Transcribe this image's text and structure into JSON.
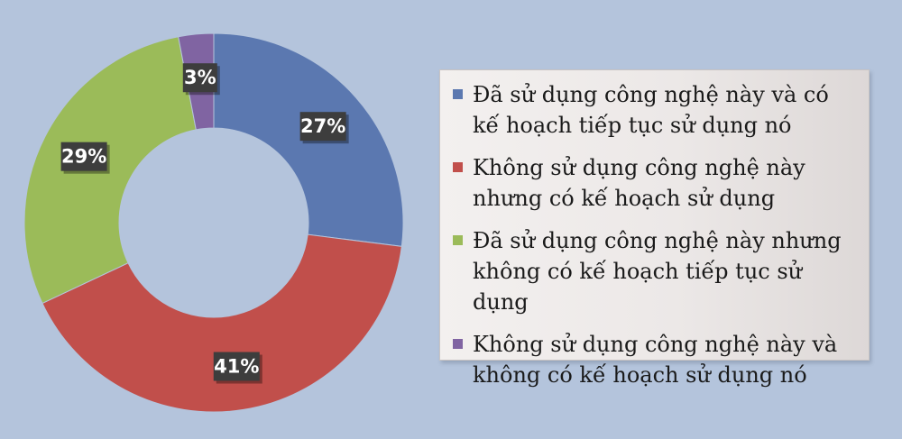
{
  "chart_data": {
    "type": "pie",
    "donut": true,
    "categories": [
      "Đã sử dụng công nghệ này và có kế hoạch tiếp tục sử dụng nó",
      "Không sử dụng công nghệ này nhưng có kế hoạch sử dụng",
      "Đã sử dụng công nghệ này nhưng không có kế hoạch tiếp tục sử dụng",
      "Không sử dụng công nghệ này và không có kế hoạch sử dụng nó"
    ],
    "values": [
      27,
      41,
      29,
      3
    ],
    "data_labels": [
      "27%",
      "41%",
      "29%",
      "3%"
    ],
    "colors": [
      "#5b78b0",
      "#c14f4b",
      "#9bbb59",
      "#8064a2"
    ],
    "legend_position": "right",
    "title": ""
  },
  "legend": {
    "items": [
      {
        "label": "Đã sử dụng công nghệ này và có kế hoạch tiếp tục sử dụng nó",
        "color": "#5b78b0"
      },
      {
        "label": "Không sử dụng công nghệ này nhưng có kế hoạch sử dụng",
        "color": "#c14f4b"
      },
      {
        "label": "Đã sử dụng công nghệ này nhưng không có kế hoạch tiếp tục sử dụng",
        "color": "#9bbb59"
      },
      {
        "label": "Không sử dụng công nghệ này và không có kế hoạch sử dụng nó",
        "color": "#8064a2"
      }
    ]
  }
}
